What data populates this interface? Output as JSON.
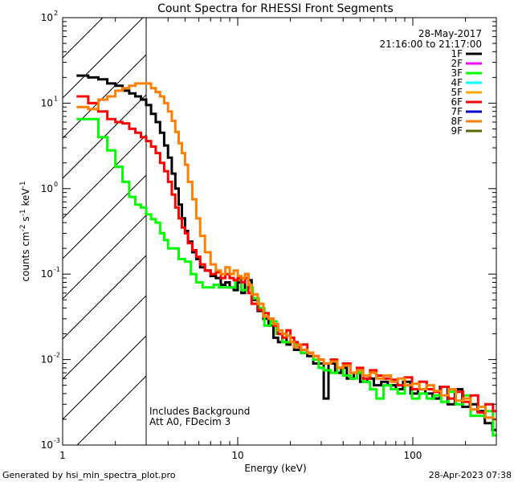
{
  "chart_data": {
    "type": "line",
    "title": "Count Spectra for RHESSI Front Segments",
    "xlabel": "Energy (keV)",
    "ylabel_parts": [
      "counts cm",
      "-2",
      " s",
      "-1",
      " keV",
      "-1"
    ],
    "xscale": "log",
    "yscale": "log",
    "xlim": [
      1,
      300
    ],
    "ylim": [
      0.001,
      100
    ],
    "x_ticks": [
      {
        "value": 1,
        "label": "1"
      },
      {
        "value": 10,
        "label": "10"
      },
      {
        "value": 100,
        "label": "100"
      }
    ],
    "y_ticks": [
      {
        "value": 0.001,
        "base": "10",
        "exp": "-3"
      },
      {
        "value": 0.01,
        "base": "10",
        "exp": "-2"
      },
      {
        "value": 0.1,
        "base": "10",
        "exp": "-1"
      },
      {
        "value": 1,
        "base": "10",
        "exp": "0"
      },
      {
        "value": 10,
        "base": "10",
        "exp": "1"
      },
      {
        "value": 100,
        "base": "10",
        "exp": "2"
      }
    ],
    "info_lines": [
      "28-May-2017",
      "21:16:00 to 21:17:00"
    ],
    "annotations": [
      "Includes Background",
      "Att A0, FDecim 3"
    ],
    "excluded_region": {
      "from": 1,
      "to": 3,
      "style": "hatched"
    },
    "series": [
      {
        "name": "1F",
        "color": "#000000",
        "points": [
          [
            1.2,
            21
          ],
          [
            1.4,
            20
          ],
          [
            1.6,
            19
          ],
          [
            1.8,
            17
          ],
          [
            2.0,
            16
          ],
          [
            2.2,
            14
          ],
          [
            2.4,
            13
          ],
          [
            2.6,
            12
          ],
          [
            2.8,
            11
          ],
          [
            3.0,
            9.5
          ],
          [
            3.2,
            7.5
          ],
          [
            3.4,
            6.0
          ],
          [
            3.6,
            4.5
          ],
          [
            3.8,
            3.2
          ],
          [
            4.0,
            2.3
          ],
          [
            4.2,
            1.5
          ],
          [
            4.4,
            1.0
          ],
          [
            4.6,
            0.65
          ],
          [
            4.8,
            0.45
          ],
          [
            5.0,
            0.32
          ],
          [
            5.2,
            0.24
          ],
          [
            5.5,
            0.18
          ],
          [
            5.8,
            0.15
          ],
          [
            6.1,
            0.12
          ],
          [
            6.5,
            0.11
          ],
          [
            7.0,
            0.095
          ],
          [
            7.5,
            0.09
          ],
          [
            8.0,
            0.075
          ],
          [
            8.5,
            0.08
          ],
          [
            9.0,
            0.07
          ],
          [
            9.5,
            0.065
          ],
          [
            10,
            0.08
          ],
          [
            10.5,
            0.06
          ],
          [
            11,
            0.1
          ],
          [
            11.5,
            0.085
          ],
          [
            12,
            0.05
          ],
          [
            13,
            0.037
          ],
          [
            14,
            0.03
          ],
          [
            15,
            0.025
          ],
          [
            16,
            0.018
          ],
          [
            17,
            0.016
          ],
          [
            18,
            0.02
          ],
          [
            19,
            0.015
          ],
          [
            20,
            0.016
          ],
          [
            21,
            0.013
          ],
          [
            22,
            0.013
          ],
          [
            23,
            0.012
          ],
          [
            25,
            0.011
          ],
          [
            27,
            0.009
          ],
          [
            29,
            0.009
          ],
          [
            31,
            0.0035
          ],
          [
            33,
            0.009
          ],
          [
            36,
            0.007
          ],
          [
            39,
            0.008
          ],
          [
            42,
            0.006
          ],
          [
            46,
            0.007
          ],
          [
            50,
            0.0055
          ],
          [
            55,
            0.006
          ],
          [
            60,
            0.005
          ],
          [
            66,
            0.0055
          ],
          [
            72,
            0.005
          ],
          [
            80,
            0.0045
          ],
          [
            88,
            0.0055
          ],
          [
            97,
            0.004
          ],
          [
            107,
            0.0045
          ],
          [
            118,
            0.004
          ],
          [
            130,
            0.0035
          ],
          [
            143,
            0.0048
          ],
          [
            158,
            0.003
          ],
          [
            174,
            0.0045
          ],
          [
            192,
            0.0028
          ],
          [
            212,
            0.003
          ],
          [
            234,
            0.0025
          ],
          [
            258,
            0.0018
          ],
          [
            285,
            0.0015
          ]
        ]
      },
      {
        "name": "2F",
        "color": "#ff00ff",
        "points": []
      },
      {
        "name": "3F",
        "color": "#00ff00",
        "points": [
          [
            1.2,
            6.5
          ],
          [
            1.4,
            6.5
          ],
          [
            1.6,
            4.0
          ],
          [
            1.8,
            2.8
          ],
          [
            2.0,
            1.8
          ],
          [
            2.2,
            1.2
          ],
          [
            2.4,
            0.8
          ],
          [
            2.6,
            0.65
          ],
          [
            2.8,
            0.6
          ],
          [
            3.0,
            0.5
          ],
          [
            3.2,
            0.44
          ],
          [
            3.4,
            0.4
          ],
          [
            3.6,
            0.3
          ],
          [
            3.8,
            0.25
          ],
          [
            4.0,
            0.2
          ],
          [
            4.3,
            0.2
          ],
          [
            4.6,
            0.15
          ],
          [
            5.0,
            0.14
          ],
          [
            5.4,
            0.1
          ],
          [
            5.8,
            0.08
          ],
          [
            6.3,
            0.07
          ],
          [
            6.8,
            0.07
          ],
          [
            7.3,
            0.075
          ],
          [
            7.8,
            0.07
          ],
          [
            8.4,
            0.07
          ],
          [
            9.0,
            0.07
          ],
          [
            9.7,
            0.085
          ],
          [
            10.5,
            0.065
          ],
          [
            11.3,
            0.07
          ],
          [
            12.2,
            0.052
          ],
          [
            13.2,
            0.04
          ],
          [
            14.2,
            0.025
          ],
          [
            15.4,
            0.028
          ],
          [
            16.6,
            0.02
          ],
          [
            18,
            0.016
          ],
          [
            19.5,
            0.016
          ],
          [
            21,
            0.015
          ],
          [
            23,
            0.012
          ],
          [
            25,
            0.012
          ],
          [
            27,
            0.01
          ],
          [
            29,
            0.008
          ],
          [
            31,
            0.0075
          ],
          [
            34,
            0.007
          ],
          [
            37,
            0.008
          ],
          [
            40,
            0.0065
          ],
          [
            44,
            0.006
          ],
          [
            48,
            0.007
          ],
          [
            52,
            0.0055
          ],
          [
            57,
            0.0045
          ],
          [
            62,
            0.0035
          ],
          [
            68,
            0.005
          ],
          [
            75,
            0.0045
          ],
          [
            82,
            0.004
          ],
          [
            90,
            0.005
          ],
          [
            99,
            0.0035
          ],
          [
            109,
            0.004
          ],
          [
            120,
            0.0035
          ],
          [
            132,
            0.0038
          ],
          [
            145,
            0.0032
          ],
          [
            160,
            0.0042
          ],
          [
            176,
            0.003
          ],
          [
            194,
            0.0038
          ],
          [
            214,
            0.0022
          ],
          [
            236,
            0.0022
          ],
          [
            260,
            0.0025
          ],
          [
            287,
            0.0013
          ]
        ]
      },
      {
        "name": "4F",
        "color": "#00ffff",
        "points": []
      },
      {
        "name": "5F",
        "color": "#ffa500",
        "points": []
      },
      {
        "name": "6F",
        "color": "#ff0000",
        "points": [
          [
            1.2,
            12
          ],
          [
            1.4,
            10
          ],
          [
            1.6,
            8
          ],
          [
            1.8,
            6.5
          ],
          [
            2.0,
            6.0
          ],
          [
            2.2,
            5.8
          ],
          [
            2.4,
            5.0
          ],
          [
            2.6,
            4.5
          ],
          [
            2.8,
            4.0
          ],
          [
            3.0,
            3.6
          ],
          [
            3.2,
            3.1
          ],
          [
            3.4,
            2.6
          ],
          [
            3.6,
            2.0
          ],
          [
            3.8,
            1.6
          ],
          [
            4.0,
            1.2
          ],
          [
            4.2,
            0.85
          ],
          [
            4.4,
            0.6
          ],
          [
            4.6,
            0.45
          ],
          [
            4.8,
            0.35
          ],
          [
            5.0,
            0.3
          ],
          [
            5.2,
            0.23
          ],
          [
            5.5,
            0.19
          ],
          [
            5.8,
            0.16
          ],
          [
            6.1,
            0.13
          ],
          [
            6.5,
            0.11
          ],
          [
            7.0,
            0.1
          ],
          [
            7.5,
            0.105
          ],
          [
            8.0,
            0.09
          ],
          [
            8.5,
            0.1
          ],
          [
            9.0,
            0.09
          ],
          [
            9.5,
            0.085
          ],
          [
            10,
            0.09
          ],
          [
            10.5,
            0.08
          ],
          [
            11,
            0.09
          ],
          [
            11.5,
            0.06
          ],
          [
            12,
            0.045
          ],
          [
            13,
            0.038
          ],
          [
            14,
            0.035
          ],
          [
            15,
            0.03
          ],
          [
            16,
            0.025
          ],
          [
            17,
            0.02
          ],
          [
            18,
            0.018
          ],
          [
            19,
            0.022
          ],
          [
            20,
            0.018
          ],
          [
            21,
            0.016
          ],
          [
            22,
            0.014
          ],
          [
            23,
            0.015
          ],
          [
            25,
            0.012
          ],
          [
            27,
            0.011
          ],
          [
            29,
            0.01
          ],
          [
            31,
            0.009
          ],
          [
            34,
            0.01
          ],
          [
            37,
            0.008
          ],
          [
            40,
            0.009
          ],
          [
            44,
            0.007
          ],
          [
            48,
            0.008
          ],
          [
            52,
            0.006
          ],
          [
            57,
            0.0075
          ],
          [
            62,
            0.0065
          ],
          [
            68,
            0.006
          ],
          [
            75,
            0.0058
          ],
          [
            82,
            0.005
          ],
          [
            90,
            0.0062
          ],
          [
            99,
            0.0045
          ],
          [
            109,
            0.0055
          ],
          [
            120,
            0.0045
          ],
          [
            132,
            0.0042
          ],
          [
            145,
            0.0048
          ],
          [
            160,
            0.0035
          ],
          [
            176,
            0.0042
          ],
          [
            194,
            0.0032
          ],
          [
            214,
            0.0038
          ],
          [
            236,
            0.0024
          ],
          [
            260,
            0.003
          ],
          [
            287,
            0.0025
          ]
        ]
      },
      {
        "name": "7F",
        "color": "#0000cd",
        "points": []
      },
      {
        "name": "8F",
        "color": "#ff7f00",
        "points": [
          [
            1.2,
            9.0
          ],
          [
            1.4,
            8.5
          ],
          [
            1.6,
            11
          ],
          [
            1.8,
            12
          ],
          [
            2.0,
            14
          ],
          [
            2.2,
            15
          ],
          [
            2.4,
            16
          ],
          [
            2.6,
            17
          ],
          [
            2.8,
            17
          ],
          [
            3.0,
            17
          ],
          [
            3.2,
            15
          ],
          [
            3.4,
            13.5
          ],
          [
            3.6,
            12
          ],
          [
            3.8,
            10
          ],
          [
            4.0,
            8.0
          ],
          [
            4.2,
            6.2
          ],
          [
            4.4,
            4.6
          ],
          [
            4.6,
            3.4
          ],
          [
            4.8,
            2.6
          ],
          [
            5.0,
            1.9
          ],
          [
            5.2,
            1.2
          ],
          [
            5.5,
            0.75
          ],
          [
            5.8,
            0.45
          ],
          [
            6.1,
            0.28
          ],
          [
            6.5,
            0.18
          ],
          [
            7.0,
            0.13
          ],
          [
            7.5,
            0.11
          ],
          [
            8.0,
            0.1
          ],
          [
            8.5,
            0.12
          ],
          [
            9.0,
            0.1
          ],
          [
            9.5,
            0.11
          ],
          [
            10,
            0.095
          ],
          [
            10.5,
            0.09
          ],
          [
            11,
            0.1
          ],
          [
            11.5,
            0.075
          ],
          [
            12,
            0.058
          ],
          [
            13,
            0.045
          ],
          [
            14,
            0.032
          ],
          [
            15,
            0.03
          ],
          [
            16,
            0.026
          ],
          [
            17,
            0.022
          ],
          [
            18,
            0.02
          ],
          [
            19,
            0.019
          ],
          [
            20,
            0.016
          ],
          [
            21,
            0.014
          ],
          [
            22,
            0.015
          ],
          [
            23,
            0.013
          ],
          [
            25,
            0.012
          ],
          [
            27,
            0.011
          ],
          [
            29,
            0.01
          ],
          [
            31,
            0.009
          ],
          [
            34,
            0.0095
          ],
          [
            37,
            0.008
          ],
          [
            40,
            0.0085
          ],
          [
            44,
            0.007
          ],
          [
            48,
            0.0075
          ],
          [
            52,
            0.0065
          ],
          [
            57,
            0.007
          ],
          [
            62,
            0.006
          ],
          [
            68,
            0.0065
          ],
          [
            75,
            0.0055
          ],
          [
            82,
            0.006
          ],
          [
            90,
            0.005
          ],
          [
            99,
            0.0052
          ],
          [
            109,
            0.0045
          ],
          [
            120,
            0.005
          ],
          [
            132,
            0.0043
          ],
          [
            145,
            0.0038
          ],
          [
            160,
            0.0045
          ],
          [
            176,
            0.0033
          ],
          [
            194,
            0.0035
          ],
          [
            214,
            0.0026
          ],
          [
            236,
            0.0028
          ],
          [
            260,
            0.0021
          ],
          [
            287,
            0.002
          ]
        ]
      },
      {
        "name": "9F",
        "color": "#556b00",
        "points": []
      }
    ]
  },
  "footer": {
    "left": "Generated by hsi_min_spectra_plot.pro",
    "right": "28-Apr-2023 07:38"
  }
}
